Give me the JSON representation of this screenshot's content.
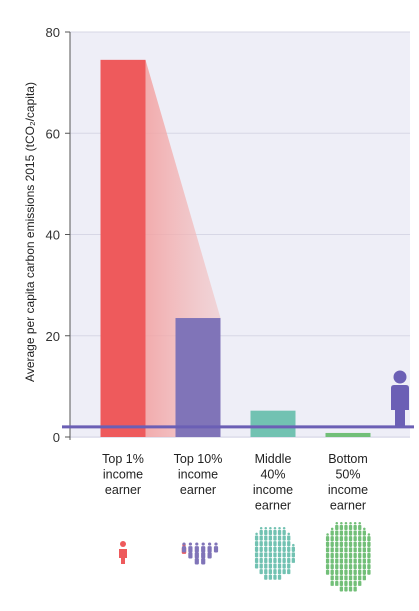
{
  "chart_data": {
    "type": "bar",
    "title": "",
    "ylabel": "Average per capita carbon emissions 2015 (tCO₂/capita)",
    "xlabel": "",
    "ylim": [
      0,
      80
    ],
    "yticks": [
      0,
      20,
      40,
      60,
      80
    ],
    "categories": [
      [
        "Top 1%",
        "income",
        "earner"
      ],
      [
        "Top 10%",
        "income",
        "earner"
      ],
      [
        "Middle",
        "40%",
        "income",
        "earner"
      ],
      [
        "Bottom",
        "50%",
        "income",
        "earner"
      ]
    ],
    "values": [
      74.5,
      23.5,
      5.2,
      0.8
    ],
    "colors": [
      "#ee5a5c",
      "#8074b8",
      "#72c2b2",
      "#72bf78"
    ],
    "reference_line": {
      "value": 2.0,
      "color": "#6b5fb5",
      "icon": "person-icon"
    },
    "population_icons": [
      "single-person-icon",
      "small-crowd-icon",
      "medium-crowd-icon",
      "large-crowd-icon"
    ],
    "grid": true,
    "legend": "none"
  }
}
